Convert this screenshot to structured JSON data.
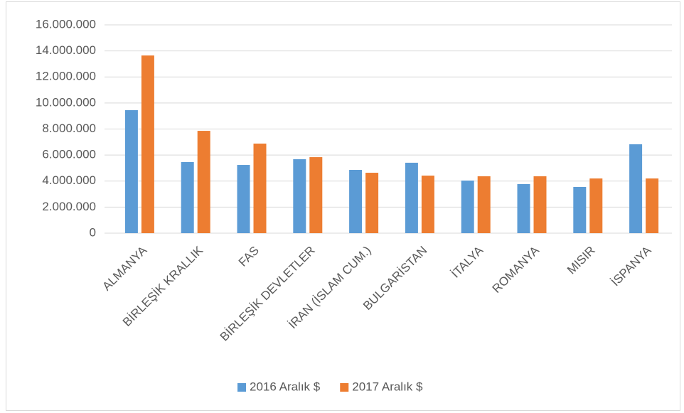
{
  "chart_data": {
    "type": "bar",
    "categories": [
      "ALMANYA",
      "BİRLEŞİK KRALLIK",
      "FAS",
      "BİRLEŞİK DEVLETLER",
      "İRAN (İSLAM CUM.)",
      "BULGARİSTAN",
      "İTALYA",
      "ROMANYA",
      "MISIR",
      "İSPANYA"
    ],
    "series": [
      {
        "name": "2016 Aralık $",
        "color": "#5b9bd5",
        "values": [
          9450000,
          5460000,
          5240000,
          5680000,
          4860000,
          5410000,
          4040000,
          3770000,
          3550000,
          6830000
        ]
      },
      {
        "name": "2017 Aralık $",
        "color": "#ed7d31",
        "values": [
          13650000,
          7860000,
          6880000,
          5840000,
          4640000,
          4420000,
          4370000,
          4370000,
          4200000,
          4200000
        ]
      }
    ],
    "ylim": [
      0,
      16000000
    ],
    "yticks": [
      0,
      {
        "value": 2000000,
        "label": "2.000.000"
      },
      {
        "value": 4000000,
        "label": "4.000.000"
      },
      {
        "value": 6000000,
        "label": "6.000.000"
      },
      {
        "value": 8000000,
        "label": "8.000.000"
      },
      {
        "value": 10000000,
        "label": "10.000.000"
      },
      {
        "value": 12000000,
        "label": "12.000.000"
      },
      {
        "value": 14000000,
        "label": "14.000.000"
      },
      {
        "value": 16000000,
        "label": "16.000.000"
      }
    ],
    "grid": true,
    "legend": "bottom"
  }
}
